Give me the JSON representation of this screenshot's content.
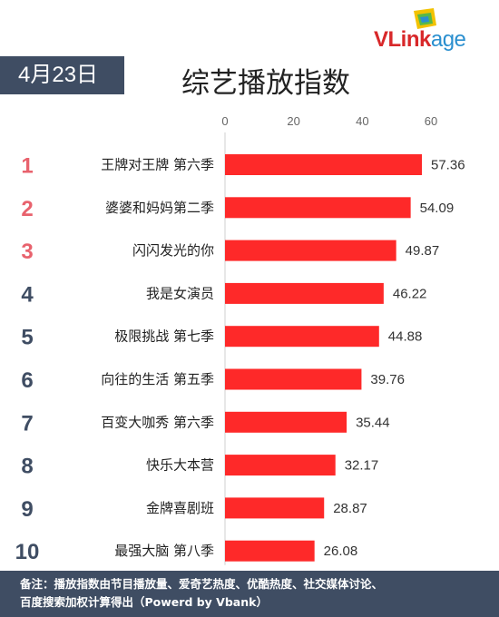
{
  "logo": {
    "v": "VL",
    "ink": "ink",
    "age": "age"
  },
  "date": "4月23日",
  "footer": {
    "line1": "备注：播放指数由节目播放量、爱奇艺热度、优酷热度、社交媒体讨论、",
    "line2": "百度搜索加权计算得出（Powerd by Vbank）"
  },
  "colors": {
    "bar": "#fe2929",
    "rank_top": "#e8626d",
    "rank_rest": "#3f4d63",
    "header_bg": "#3f4d63"
  },
  "chart_data": {
    "type": "bar",
    "orientation": "horizontal",
    "title": "综艺播放指数",
    "xlim": [
      0,
      60
    ],
    "ticks": [
      "0",
      "20",
      "40",
      "60"
    ],
    "ranks": [
      "1",
      "2",
      "3",
      "4",
      "5",
      "6",
      "7",
      "8",
      "9",
      "10"
    ],
    "categories": [
      "王牌对王牌 第六季",
      "婆婆和妈妈第二季",
      "闪闪发光的你",
      "我是女演员",
      "极限挑战 第七季",
      "向往的生活 第五季",
      "百变大咖秀 第六季",
      "快乐大本营",
      "金牌喜剧班",
      "最强大脑 第八季"
    ],
    "values": [
      57.36,
      54.09,
      49.87,
      46.22,
      44.88,
      39.76,
      35.44,
      32.17,
      28.87,
      26.08
    ],
    "value_labels": [
      "57.36",
      "54.09",
      "49.87",
      "46.22",
      "44.88",
      "39.76",
      "35.44",
      "32.17",
      "28.87",
      "26.08"
    ]
  }
}
